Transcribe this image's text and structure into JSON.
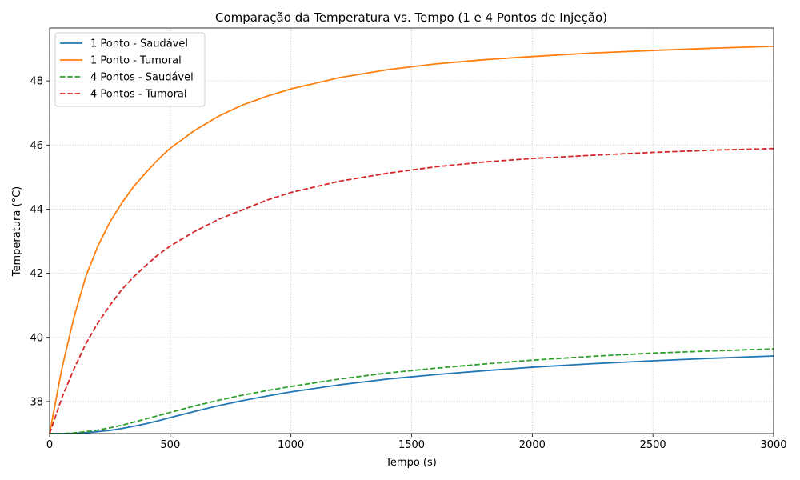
{
  "chart_data": {
    "type": "line",
    "title": "Comparação da Temperatura vs. Tempo (1 e 4 Pontos de Injeção)",
    "xlabel": "Tempo (s)",
    "ylabel": "Temperatura (°C)",
    "xlim": [
      0,
      3000
    ],
    "ylim": [
      37,
      49.65
    ],
    "xticks": [
      0,
      500,
      1000,
      1500,
      2000,
      2500,
      3000
    ],
    "yticks": [
      38,
      40,
      42,
      44,
      46,
      48
    ],
    "grid": true,
    "grid_style": "dotted",
    "legend_position": "top-left",
    "x": [
      0,
      50,
      100,
      150,
      200,
      250,
      300,
      350,
      400,
      450,
      500,
      600,
      700,
      800,
      900,
      1000,
      1200,
      1400,
      1600,
      1800,
      2000,
      2250,
      2500,
      2750,
      3000
    ],
    "series": [
      {
        "name": "1 Ponto - Saudável",
        "color": "#1f77b4",
        "dash": "solid",
        "values": [
          37.0,
          37.0,
          37.01,
          37.03,
          37.06,
          37.1,
          37.16,
          37.23,
          37.31,
          37.4,
          37.5,
          37.69,
          37.87,
          38.03,
          38.17,
          38.3,
          38.52,
          38.7,
          38.84,
          38.96,
          39.07,
          39.18,
          39.27,
          39.35,
          39.42
        ]
      },
      {
        "name": "1 Ponto - Tumoral",
        "color": "#ff7f0e",
        "dash": "solid",
        "values": [
          37.0,
          39.0,
          40.6,
          41.9,
          42.85,
          43.6,
          44.2,
          44.72,
          45.15,
          45.55,
          45.9,
          46.45,
          46.9,
          47.25,
          47.52,
          47.75,
          48.1,
          48.35,
          48.53,
          48.66,
          48.76,
          48.87,
          48.95,
          49.02,
          49.08
        ]
      },
      {
        "name": "4 Pontos - Saudável",
        "color": "#2ca02c",
        "dash": "dashed",
        "values": [
          37.0,
          37.0,
          37.02,
          37.06,
          37.11,
          37.18,
          37.26,
          37.36,
          37.46,
          37.56,
          37.66,
          37.86,
          38.04,
          38.2,
          38.34,
          38.47,
          38.7,
          38.89,
          39.04,
          39.17,
          39.29,
          39.41,
          39.51,
          39.58,
          39.64
        ]
      },
      {
        "name": "4 Pontos - Tumoral",
        "color": "#d62728",
        "dash": "dashed",
        "values": [
          37.0,
          38.1,
          39.0,
          39.8,
          40.45,
          41.0,
          41.5,
          41.9,
          42.25,
          42.58,
          42.85,
          43.3,
          43.68,
          43.98,
          44.28,
          44.52,
          44.87,
          45.12,
          45.32,
          45.47,
          45.58,
          45.68,
          45.77,
          45.84,
          45.89
        ]
      }
    ]
  }
}
